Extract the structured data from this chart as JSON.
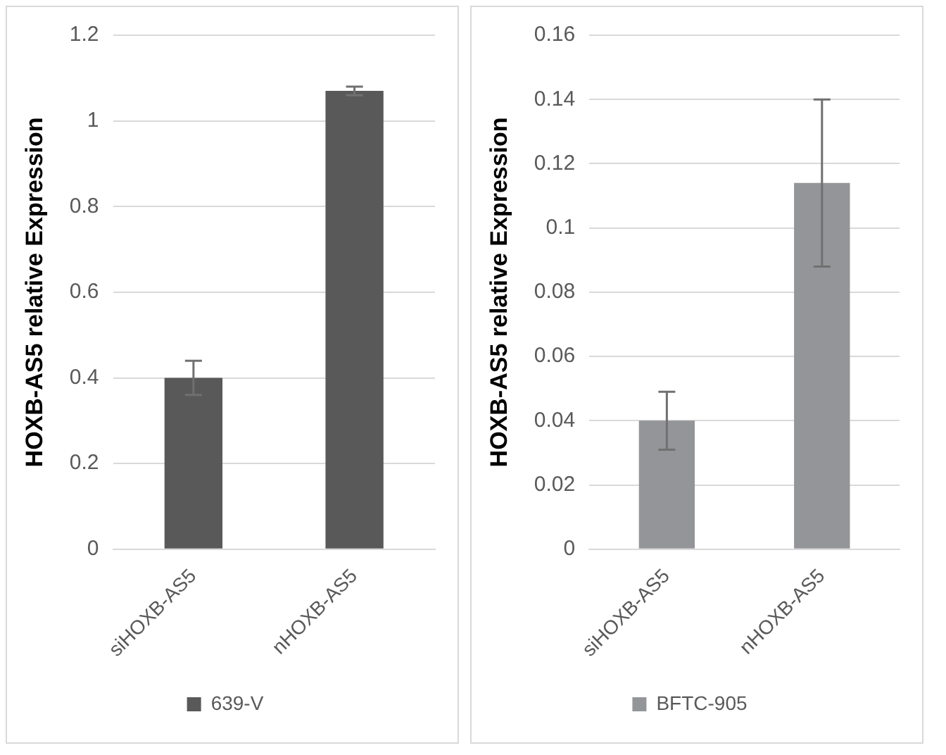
{
  "chart_data": [
    {
      "type": "bar",
      "ylabel": "HOXB-AS5 relative Expression",
      "categories": [
        "siHOXB-AS5",
        "nHOXB-AS5"
      ],
      "series": [
        {
          "name": "639-V",
          "color": "#595959",
          "values": [
            0.4,
            1.07
          ],
          "errors": [
            0.04,
            0.01
          ]
        }
      ],
      "ylim": [
        0,
        1.2
      ],
      "yticks": [
        0,
        0.2,
        0.4,
        0.6,
        0.8,
        1,
        1.2
      ],
      "grid": "y",
      "legend": "bottom"
    },
    {
      "type": "bar",
      "ylabel": "HOXB-AS5 relative Expression",
      "categories": [
        "siHOXB-AS5",
        "nHOXB-AS5"
      ],
      "series": [
        {
          "name": "BFTC-905",
          "color": "#939598",
          "values": [
            0.04,
            0.114
          ],
          "errors": [
            0.009,
            0.026
          ]
        }
      ],
      "ylim": [
        0,
        0.16
      ],
      "yticks": [
        0,
        0.02,
        0.04,
        0.06,
        0.08,
        0.1,
        0.12,
        0.14,
        0.16
      ],
      "grid": "y",
      "legend": "bottom"
    }
  ]
}
